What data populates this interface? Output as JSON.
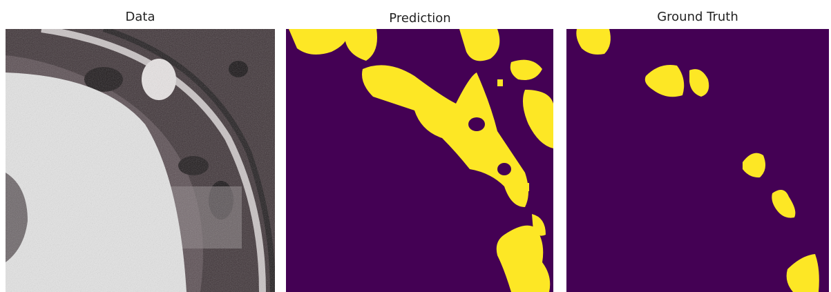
{
  "panels": [
    {
      "title": "Data"
    },
    {
      "title": "Prediction"
    },
    {
      "title": "Ground Truth"
    }
  ]
}
